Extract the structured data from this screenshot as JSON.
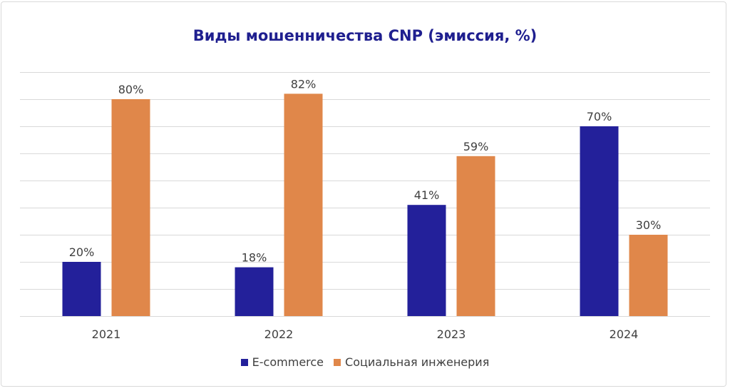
{
  "chart_data": {
    "type": "bar",
    "title": "Виды мошенничества CNP (эмиссия, %)",
    "xlabel": "",
    "ylabel": "",
    "categories": [
      "2021",
      "2022",
      "2023",
      "2024"
    ],
    "series": [
      {
        "name": "E-commerce",
        "values": [
          20,
          18,
          41,
          70
        ],
        "labels": [
          "20%",
          "18%",
          "41%",
          "70%"
        ],
        "color": "#23209a"
      },
      {
        "name": "Социальная инженерия",
        "values": [
          80,
          82,
          59,
          30
        ],
        "labels": [
          "80%",
          "82%",
          "59%",
          "30%"
        ],
        "color": "#e0874a"
      }
    ],
    "ylim": [
      0,
      90
    ],
    "grid": true,
    "legend_position": "bottom"
  }
}
